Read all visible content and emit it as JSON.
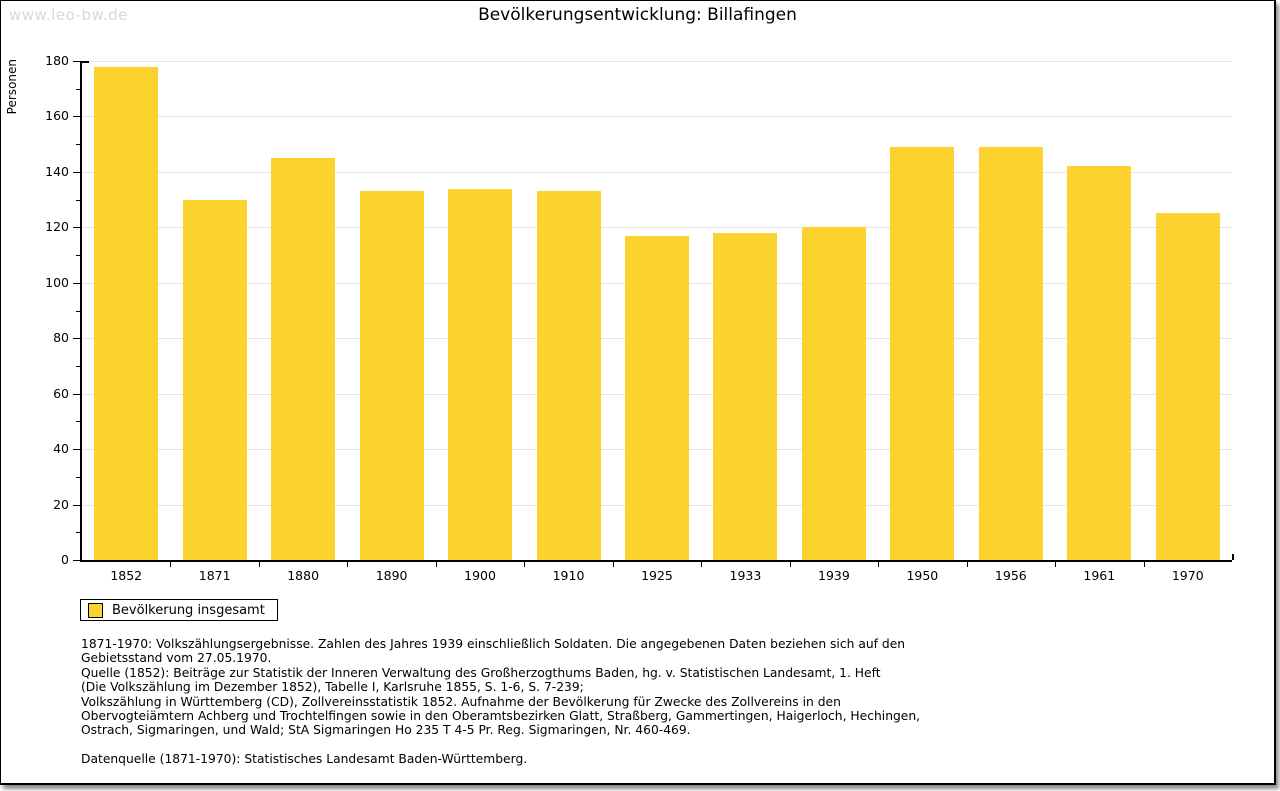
{
  "watermark": "www.leo-bw.de",
  "title": "Bevölkerungsentwicklung: Billafingen",
  "chart_data": {
    "type": "bar",
    "title": "Bevölkerungsentwicklung: Billafingen",
    "ylabel": "Personen",
    "xlabel": "",
    "categories": [
      "1852",
      "1871",
      "1880",
      "1890",
      "1900",
      "1910",
      "1925",
      "1933",
      "1939",
      "1950",
      "1956",
      "1961",
      "1970"
    ],
    "values": [
      178,
      130,
      145,
      133,
      134,
      133,
      117,
      118,
      120,
      149,
      149,
      142,
      125
    ],
    "ylim": [
      0,
      180
    ],
    "ytick_major": 20,
    "ytick_minor": 10,
    "grid": "horizontal-major",
    "bar_color": "#fcd22f",
    "legend_position": "bottom-left",
    "legend": [
      "Bevölkerung insgesamt"
    ]
  },
  "legend": {
    "label": "Bevölkerung insgesamt",
    "swatch_color": "#fcd22f"
  },
  "footer": {
    "lines": [
      "1871-1970: Volkszählungsergebnisse. Zahlen des Jahres 1939 einschließlich Soldaten. Die angegebenen Daten beziehen sich auf den",
      "Gebietsstand vom 27.05.1970.",
      "Quelle (1852): Beiträge zur Statistik der Inneren Verwaltung des Großherzogthums Baden, hg. v. Statistischen Landesamt, 1. Heft",
      "(Die Volkszählung im Dezember 1852), Tabelle I, Karlsruhe 1855, S. 1-6, S. 7-239;",
      "Volkszählung in Württemberg (CD), Zollvereinsstatistik 1852. Aufnahme der Bevölkerung für Zwecke des Zollvereins in den",
      "Obervogteiämtern Achberg und Trochtelfingen sowie in den Oberamtsbezirken Glatt, Straßberg, Gammertingen, Haigerloch, Hechingen,",
      "Ostrach, Sigmaringen, und Wald; StA Sigmaringen Ho 235 T 4-5 Pr. Reg. Sigmaringen, Nr. 460-469."
    ],
    "source_line": "Datenquelle (1871-1970): Statistisches Landesamt Baden-Württemberg."
  }
}
